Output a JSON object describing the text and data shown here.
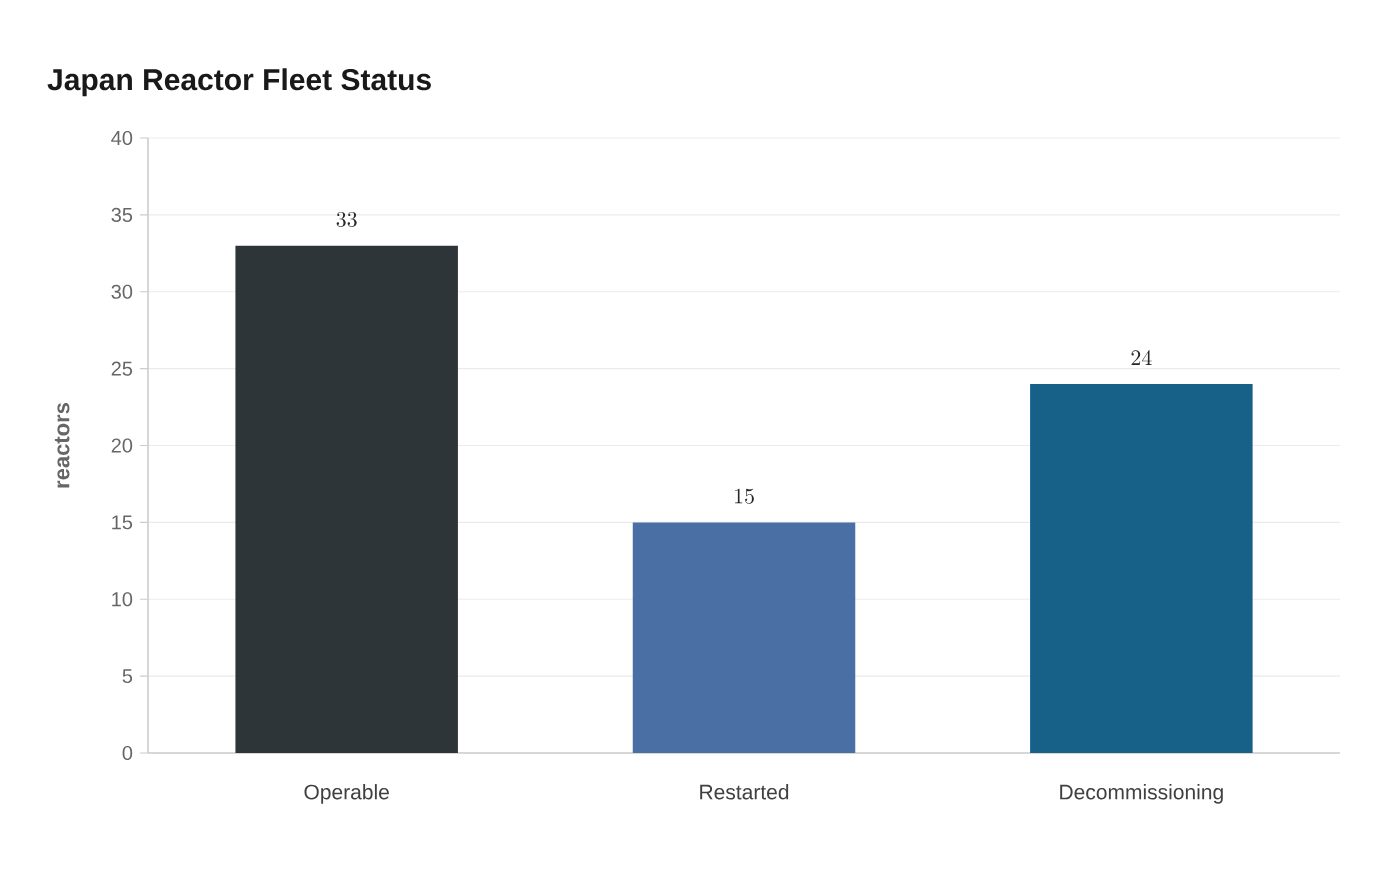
{
  "chart_data": {
    "type": "bar",
    "title": "Japan Reactor Fleet Status",
    "ylabel": "reactors",
    "categories": [
      "Operable",
      "Restarted",
      "Decommissioning"
    ],
    "values": [
      33,
      15,
      24
    ],
    "colors": [
      "#2e3538",
      "#4a6fa5",
      "#176087"
    ],
    "ylim": [
      0,
      40
    ],
    "yticks": [
      0,
      5,
      10,
      15,
      20,
      25,
      30,
      35,
      40
    ],
    "grid": "y",
    "data_labels": true
  }
}
